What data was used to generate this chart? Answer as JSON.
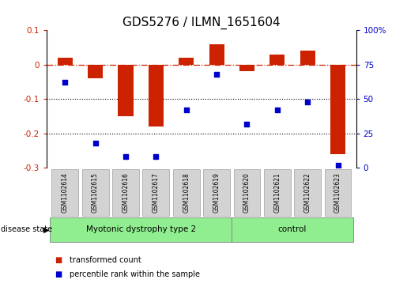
{
  "title": "GDS5276 / ILMN_1651604",
  "samples": [
    "GSM1102614",
    "GSM1102615",
    "GSM1102616",
    "GSM1102617",
    "GSM1102618",
    "GSM1102619",
    "GSM1102620",
    "GSM1102621",
    "GSM1102622",
    "GSM1102623"
  ],
  "red_values": [
    0.02,
    -0.04,
    -0.15,
    -0.18,
    0.02,
    0.06,
    -0.02,
    0.03,
    0.04,
    -0.26
  ],
  "blue_values_pct": [
    62,
    18,
    8,
    8,
    42,
    68,
    32,
    42,
    48,
    2
  ],
  "ylim_left": [
    -0.3,
    0.1
  ],
  "ylim_right": [
    0,
    100
  ],
  "yticks_left": [
    0.1,
    0.0,
    -0.1,
    -0.2,
    -0.3
  ],
  "yticks_right": [
    100,
    75,
    50,
    25,
    0
  ],
  "hline_y": 0.0,
  "dotted_lines": [
    -0.1,
    -0.2
  ],
  "disease_groups": [
    {
      "label": "Myotonic dystrophy type 2",
      "start": 0,
      "end": 6,
      "color": "#90ee90"
    },
    {
      "label": "control",
      "start": 6,
      "end": 10,
      "color": "#90ee90"
    }
  ],
  "red_color": "#cc2200",
  "blue_color": "#0000cc",
  "legend_items": [
    {
      "label": "transformed count",
      "color": "#cc2200"
    },
    {
      "label": "percentile rank within the sample",
      "color": "#0000cc"
    }
  ],
  "bar_width": 0.5,
  "background_color": "#ffffff",
  "tick_label_size": 7.5,
  "title_fontsize": 11,
  "label_box_color": "#d3d3d3",
  "label_box_edge": "#aaaaaa"
}
